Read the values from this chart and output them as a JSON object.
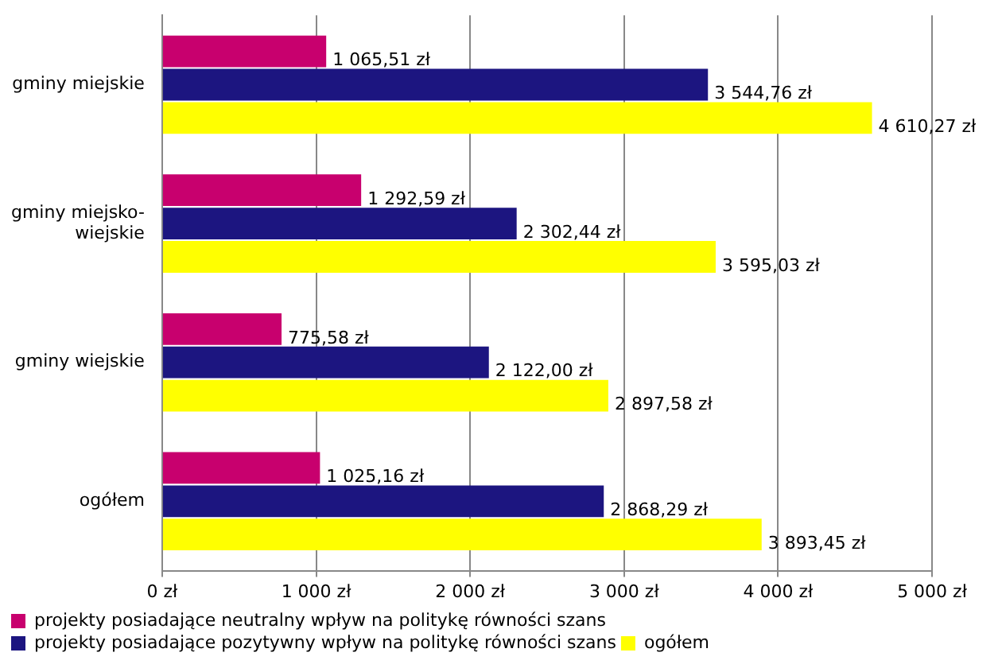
{
  "chart_data": {
    "type": "bar",
    "orientation": "horizontal",
    "categories": [
      "gminy miejskie",
      "gminy miejsko-wiejskie",
      "gminy wiejskie",
      "ogółem"
    ],
    "series": [
      {
        "name": "projekty posiadające neutralny wpływ na politykę równości szans",
        "color": "#c8006e",
        "values": [
          1065.51,
          1292.59,
          775.58,
          1025.16
        ],
        "value_labels": [
          "1 065,51 zł",
          "1 292,59 zł",
          "775,58 zł",
          "1 025,16 zł"
        ]
      },
      {
        "name": "projekty posiadające pozytywny wpływ na politykę równości szans",
        "color": "#1c1580",
        "values": [
          3544.76,
          2302.44,
          2122.0,
          2868.29
        ],
        "value_labels": [
          "3 544,76 zł",
          "2 302,44 zł",
          "2 122,00 zł",
          "2 868,29 zł"
        ]
      },
      {
        "name": "ogółem",
        "color": "#ffff00",
        "values": [
          4610.27,
          3595.03,
          2897.58,
          3893.45
        ],
        "value_labels": [
          "4 610,27 zł",
          "3 595,03 zł",
          "2 897,58 zł",
          "3 893,45 zł"
        ]
      }
    ],
    "xlim": [
      0,
      5000
    ],
    "xticks": [
      {
        "value": 0,
        "label": "0 zł"
      },
      {
        "value": 1000,
        "label": "1 000 zł"
      },
      {
        "value": 2000,
        "label": "2 000 zł"
      },
      {
        "value": 3000,
        "label": "3 000 zł"
      },
      {
        "value": 4000,
        "label": "4 000 zł"
      },
      {
        "value": 5000,
        "label": "5 000 zł"
      }
    ],
    "grid": "x",
    "legend": "bottom"
  }
}
